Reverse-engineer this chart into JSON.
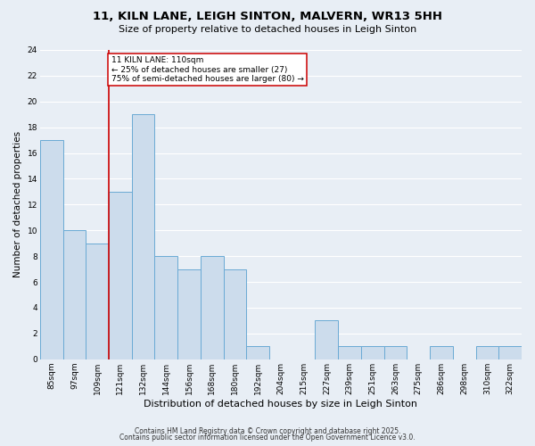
{
  "title1": "11, KILN LANE, LEIGH SINTON, MALVERN, WR13 5HH",
  "title2": "Size of property relative to detached houses in Leigh Sinton",
  "xlabel": "Distribution of detached houses by size in Leigh Sinton",
  "ylabel": "Number of detached properties",
  "bar_labels": [
    "85sqm",
    "97sqm",
    "109sqm",
    "121sqm",
    "132sqm",
    "144sqm",
    "156sqm",
    "168sqm",
    "180sqm",
    "192sqm",
    "204sqm",
    "215sqm",
    "227sqm",
    "239sqm",
    "251sqm",
    "263sqm",
    "275sqm",
    "286sqm",
    "298sqm",
    "310sqm",
    "322sqm"
  ],
  "bar_values": [
    17,
    10,
    9,
    13,
    19,
    8,
    7,
    8,
    7,
    1,
    0,
    0,
    3,
    1,
    1,
    1,
    0,
    1,
    0,
    1,
    1
  ],
  "bar_color": "#ccdcec",
  "bar_edgecolor": "#6aaad4",
  "vline_index": 2,
  "vline_color": "#cc0000",
  "annotation_line1": "11 KILN LANE: 110sqm",
  "annotation_line2": "← 25% of detached houses are smaller (27)",
  "annotation_line3": "75% of semi-detached houses are larger (80) →",
  "annotation_box_edgecolor": "#cc0000",
  "annotation_box_facecolor": "#ffffff",
  "ylim": [
    0,
    24
  ],
  "yticks": [
    0,
    2,
    4,
    6,
    8,
    10,
    12,
    14,
    16,
    18,
    20,
    22,
    24
  ],
  "footer1": "Contains HM Land Registry data © Crown copyright and database right 2025.",
  "footer2": "Contains public sector information licensed under the Open Government Licence v3.0.",
  "bg_color": "#e8eef5",
  "plot_bg_color": "#e8eef5",
  "grid_color": "#ffffff",
  "title1_fontsize": 9.5,
  "title2_fontsize": 8.0,
  "xlabel_fontsize": 8.0,
  "ylabel_fontsize": 7.5,
  "tick_fontsize": 6.5,
  "footer_fontsize": 5.5
}
